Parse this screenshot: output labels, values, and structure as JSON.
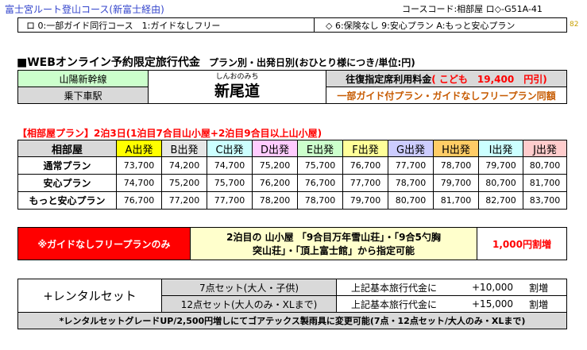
{
  "header": {
    "title": "富士宮ルート登山コース(新富士経由)",
    "course_code": "コースコード:相部屋 ロ◇-G51A-41",
    "options_left": "ロ 0:一部ガイド同行コース　1:ガイドなしフリー",
    "options_right": "◇ 6:保険なし 9:安心プラン A:もっと安心プラン",
    "page_number": "82"
  },
  "section": {
    "heading": "■WEBオンライン予約限定旅行代金",
    "subheading": "プラン別・出発日別(おひとり様につき/単位:円)"
  },
  "station": {
    "line_label": "山陽新幹線",
    "board_label": "乗下車駅",
    "furigana": "しんおのみち",
    "name": "新尾道",
    "fare_label": "往復指定席利用料金",
    "fare_child": "( こども　19,400　円引)",
    "plan_note": "一部ガイド付プラン・ガイドなしフリープラン同額"
  },
  "plan_title": "【相部屋プラン】2泊3日(1泊目7合目山小屋+2泊目9合目以上山小屋)",
  "price_table": {
    "corner_label": "相部屋",
    "columns": [
      {
        "label": "A出発",
        "color": "#ffff00"
      },
      {
        "label": "B出発",
        "color": "#e6e6e6"
      },
      {
        "label": "C出発",
        "color": "#ccffff"
      },
      {
        "label": "D出発",
        "color": "#ffccff"
      },
      {
        "label": "E出発",
        "color": "#ccffcc"
      },
      {
        "label": "F出発",
        "color": "#ffff99"
      },
      {
        "label": "G出発",
        "color": "#ccccff"
      },
      {
        "label": "H出発",
        "color": "#ffcc66"
      },
      {
        "label": "I出発",
        "color": "#ccffff"
      },
      {
        "label": "J出発",
        "color": "#ffcccc"
      }
    ],
    "rows": [
      {
        "label": "通常プラン",
        "values": [
          "73,700",
          "74,200",
          "74,700",
          "75,200",
          "75,700",
          "76,700",
          "77,700",
          "78,700",
          "79,700",
          "80,700"
        ]
      },
      {
        "label": "安心プラン",
        "values": [
          "74,700",
          "75,200",
          "75,700",
          "76,200",
          "76,700",
          "77,700",
          "78,700",
          "79,700",
          "80,700",
          "81,700"
        ]
      },
      {
        "label": "もっと安心プラン",
        "values": [
          "76,700",
          "77,200",
          "77,700",
          "78,200",
          "78,700",
          "79,700",
          "80,700",
          "81,700",
          "82,700",
          "83,700"
        ]
      }
    ]
  },
  "free_plan": {
    "label": "※ガイドなしフリープランのみ",
    "description_line1": "2泊目の 山小屋 「9合目万年雪山荘」・「9合5勺胸",
    "description_line2": "突山荘」・「頂上富士館」から指定可能",
    "surcharge": "1,000円割増"
  },
  "rental": {
    "title": "+レンタルセット",
    "rows": [
      {
        "set": "7点セット(大人・子供)",
        "base_label": "上記基本旅行代金に",
        "amount": "+10,000",
        "suffix": "割増"
      },
      {
        "set": "12点セット(大人のみ・XLまで)",
        "base_label": "上記基本旅行代金に",
        "amount": "+15,000",
        "suffix": "割増"
      }
    ],
    "note": "*レンタルセットグレードUP/2,500円増しにてゴアテックス製雨具に変更可能(7点・12点セット/大人のみ・XLまで)"
  },
  "colors": {
    "title_blue": "#3344cc",
    "station_green": "#ccffcc",
    "gray_header": "#d9d9d9",
    "accent_red": "#ff0000",
    "orange_text": "#c65a00",
    "alert_red_bg": "#ff0000",
    "cream": "#ffffcc"
  }
}
